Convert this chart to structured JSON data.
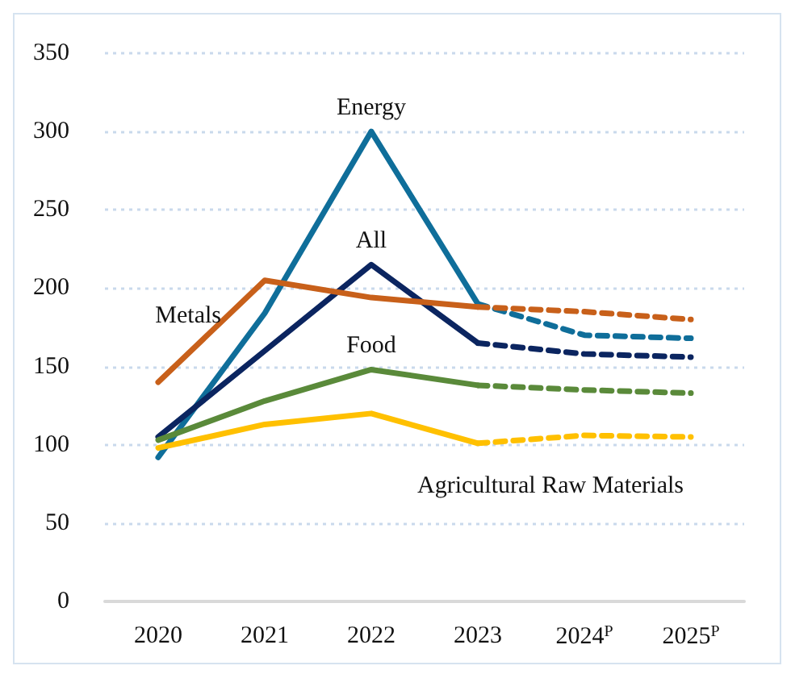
{
  "chart_data": {
    "type": "line",
    "categories": [
      "2020",
      "2021",
      "2022",
      "2023",
      "2024$^{P}$",
      "2025$^{P}$"
    ],
    "ylim": [
      0,
      350
    ],
    "yticks": [
      0,
      50,
      100,
      150,
      200,
      250,
      300,
      350
    ],
    "grid": "y",
    "legend": false,
    "marker": "none",
    "series": [
      {
        "name": "Energy",
        "color": "#0f6e9a",
        "line_style": "solid",
        "values": [
          92,
          184,
          300,
          190,
          null,
          null
        ]
      },
      {
        "color": "#0f6e9a",
        "line_style": "dashed",
        "values": [
          null,
          null,
          null,
          190,
          170,
          168
        ]
      },
      {
        "name": "All",
        "color": "#0b2560",
        "line_style": "solid",
        "values": [
          105,
          160,
          215,
          165,
          null,
          null
        ]
      },
      {
        "color": "#0b2560",
        "line_style": "dashed",
        "values": [
          null,
          null,
          null,
          165,
          158,
          156
        ]
      },
      {
        "name": "Metals",
        "color": "#c8601a",
        "line_style": "solid",
        "values": [
          140,
          205,
          194,
          188,
          null,
          null
        ]
      },
      {
        "color": "#c8601a",
        "line_style": "dashed",
        "values": [
          null,
          null,
          null,
          188,
          185,
          180
        ]
      },
      {
        "name": "Food",
        "color": "#5a8a3a",
        "line_style": "solid",
        "values": [
          103,
          128,
          148,
          138,
          null,
          null
        ]
      },
      {
        "color": "#5a8a3a",
        "line_style": "dashed",
        "values": [
          null,
          null,
          null,
          138,
          135,
          133
        ]
      },
      {
        "name": "Agricultural Raw Materials",
        "color": "#ffc000",
        "line_style": "solid",
        "values": [
          98,
          113,
          120,
          101,
          null,
          null
        ]
      },
      {
        "color": "#ffc000",
        "line_style": "dashed",
        "values": [
          null,
          null,
          null,
          101,
          106,
          105
        ]
      }
    ]
  }
}
